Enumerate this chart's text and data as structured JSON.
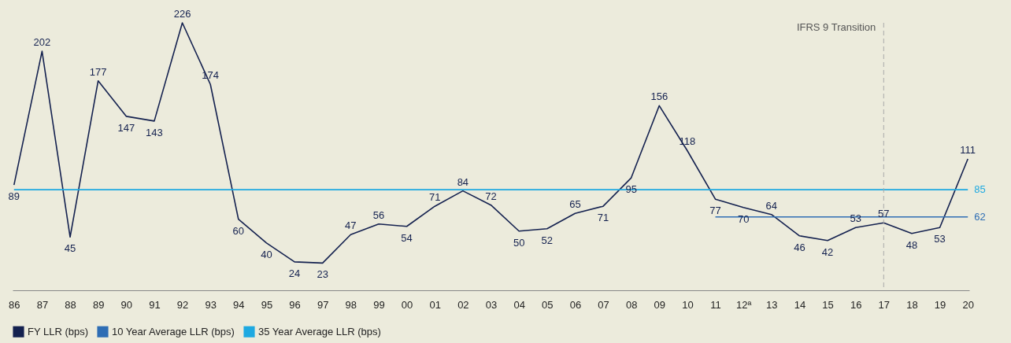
{
  "chart_data": {
    "type": "line",
    "categories": [
      "86",
      "87",
      "88",
      "89",
      "90",
      "91",
      "92",
      "93",
      "94",
      "95",
      "96",
      "97",
      "98",
      "99",
      "00",
      "01",
      "02",
      "03",
      "04",
      "05",
      "06",
      "07",
      "08",
      "09",
      "10",
      "11",
      "12ª",
      "13",
      "14",
      "15",
      "16",
      "17",
      "18",
      "19",
      "20"
    ],
    "series": [
      {
        "name": "FY LLR (bps)",
        "color": "#14214f",
        "values": [
          89,
          202,
          45,
          177,
          147,
          143,
          226,
          174,
          60,
          40,
          24,
          23,
          47,
          56,
          54,
          71,
          84,
          72,
          50,
          52,
          65,
          71,
          95,
          156,
          118,
          77,
          70,
          64,
          46,
          42,
          53,
          57,
          48,
          53,
          111
        ]
      },
      {
        "name": "10 Year Average LLR (bps)",
        "color": "#2e6db4",
        "values": [
          null,
          null,
          null,
          null,
          null,
          null,
          null,
          null,
          null,
          null,
          null,
          null,
          null,
          null,
          null,
          null,
          null,
          null,
          null,
          null,
          null,
          null,
          null,
          null,
          null,
          62,
          62,
          62,
          62,
          62,
          62,
          62,
          62,
          62,
          62
        ],
        "value_labels": [
          null,
          null,
          null,
          null,
          null,
          null,
          null,
          null,
          null,
          null,
          null,
          null,
          null,
          null,
          null,
          null,
          null,
          null,
          null,
          null,
          null,
          null,
          null,
          null,
          null,
          null,
          null,
          null,
          null,
          null,
          null,
          null,
          null,
          null,
          "62"
        ]
      },
      {
        "name": "35 Year Average LLR (bps)",
        "color": "#1ea9e1",
        "values": [
          85,
          85,
          85,
          85,
          85,
          85,
          85,
          85,
          85,
          85,
          85,
          85,
          85,
          85,
          85,
          85,
          85,
          85,
          85,
          85,
          85,
          85,
          85,
          85,
          85,
          85,
          85,
          85,
          85,
          85,
          85,
          85,
          85,
          85,
          85
        ],
        "value_labels": [
          null,
          null,
          null,
          null,
          null,
          null,
          null,
          null,
          null,
          null,
          null,
          null,
          null,
          null,
          null,
          null,
          null,
          null,
          null,
          null,
          null,
          null,
          null,
          null,
          null,
          null,
          null,
          null,
          null,
          null,
          null,
          null,
          null,
          null,
          "85"
        ]
      }
    ],
    "data_labels": true,
    "tick_labels": "x",
    "grid": false,
    "legend": "bottom",
    "line_style": "solid",
    "marker": "none",
    "ref_lines": [
      {
        "axis": "x",
        "value": "17",
        "label": "IFRS 9 Transition",
        "color": "#a8a8a8",
        "line_style": "dashed"
      }
    ]
  }
}
